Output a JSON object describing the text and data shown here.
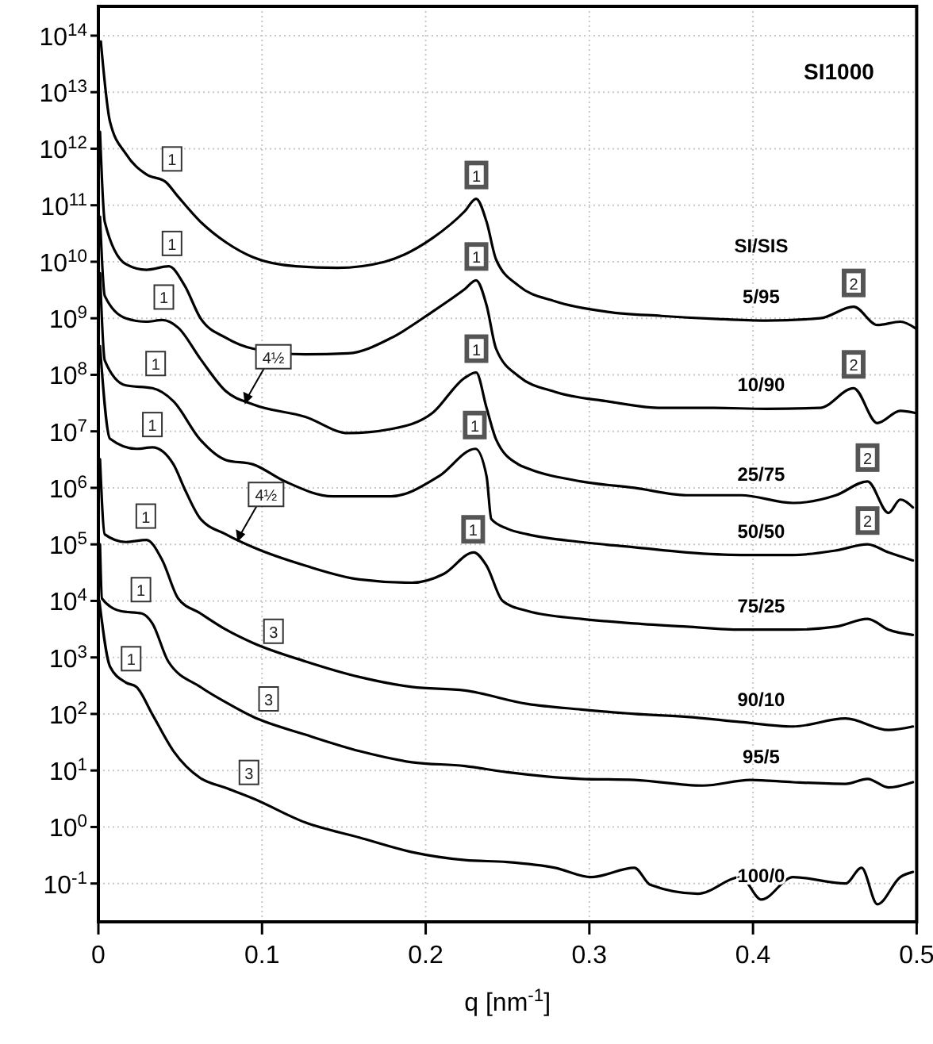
{
  "chart_data": {
    "type": "line",
    "title": "SI1000",
    "legend_title": "SI/SIS",
    "xlabel": "q [nm$^{-1}$]",
    "log": "y",
    "grid": true,
    "xlim": [
      0,
      0.5
    ],
    "ylim": [
      0.021,
      330000000000000.0
    ],
    "xticks": [
      0,
      0.1,
      0.2,
      0.3,
      0.4,
      0.5
    ],
    "yticks": [
      {
        "value": 0.1,
        "label": "10$^{-1}$"
      },
      {
        "value": 1,
        "label": "10$^{0}$"
      },
      {
        "value": 10,
        "label": "10$^{1}$"
      },
      {
        "value": 100,
        "label": "10$^{2}$"
      },
      {
        "value": 1000,
        "label": "10$^{3}$"
      },
      {
        "value": 10000.0,
        "label": "10$^{4}$"
      },
      {
        "value": 100000.0,
        "label": "10$^{5}$"
      },
      {
        "value": 1000000.0,
        "label": "10$^{6}$"
      },
      {
        "value": 10000000.0,
        "label": "10$^{7}$"
      },
      {
        "value": 100000000.0,
        "label": "10$^{8}$"
      },
      {
        "value": 1000000000.0,
        "label": "10$^{9}$"
      },
      {
        "value": 10000000000.0,
        "label": "10$^{10}$"
      },
      {
        "value": 100000000000.0,
        "label": "10$^{11}$"
      },
      {
        "value": 1000000000000.0,
        "label": "10$^{12}$"
      },
      {
        "value": 10000000000000.0,
        "label": "10$^{13}$"
      },
      {
        "value": 100000000000000.0,
        "label": "10$^{14}$"
      }
    ],
    "series": [
      {
        "name": "5/95",
        "color": "#000000",
        "x": [
          0.0015,
          0.0071,
          0.0168,
          0.0294,
          0.041,
          0.048,
          0.0624,
          0.078,
          0.0945,
          0.1207,
          0.146,
          0.175,
          0.204,
          0.224,
          0.2308,
          0.2372,
          0.243,
          0.2566,
          0.279,
          0.311,
          0.344,
          0.376,
          0.408,
          0.441,
          0.4615,
          0.476,
          0.49,
          0.4995
        ],
        "values": [
          79000000000000.0,
          3000000000000.0,
          810000000000.0,
          350000000000.0,
          260000000000.0,
          150000000000.0,
          51000000000.0,
          22000000000.0,
          12000000000.0,
          8300000000.0,
          7800000000.0,
          10000000000.0,
          26000000000.0,
          79000000000.0,
          130000000000.0,
          51000000000.0,
          11000000000.0,
          3800000000.0,
          2000000000.0,
          1300000000.0,
          1100000000.0,
          980000000.0,
          910000000.0,
          1000000000.0,
          1600000000.0,
          760000000.0,
          870000000.0,
          660000000.0
        ]
      },
      {
        "name": "10/90",
        "color": "#000000",
        "x": [
          0.001,
          0.0039,
          0.0168,
          0.0294,
          0.043,
          0.0527,
          0.0624,
          0.078,
          0.0945,
          0.1265,
          0.1527,
          0.179,
          0.204,
          0.224,
          0.2308,
          0.2372,
          0.243,
          0.2566,
          0.279,
          0.311,
          0.344,
          0.376,
          0.408,
          0.441,
          0.4615,
          0.476,
          0.49,
          0.4995
        ],
        "values": [
          2000000000000.0,
          51000000000.0,
          9100000000.0,
          7200000000.0,
          8300000000.0,
          3800000000.0,
          1000000000.0,
          450000000.0,
          290000000.0,
          230000000.0,
          240000000.0,
          450000000.0,
          1300000000.0,
          3300000000.0,
          4700000000.0,
          1700000000.0,
          290000000.0,
          95000000.0,
          50000000.0,
          34000000.0,
          26000000.0,
          26000000.0,
          25000000.0,
          26000000.0,
          58000000.0,
          14000000.0,
          23000000.0,
          21000000.0
        ]
      },
      {
        "name": "25/75",
        "color": "#000000",
        "x": [
          0.001,
          0.0039,
          0.0168,
          0.0294,
          0.0391,
          0.0488,
          0.0624,
          0.078,
          0.0945,
          0.1265,
          0.1527,
          0.179,
          0.204,
          0.224,
          0.2308,
          0.2372,
          0.243,
          0.2566,
          0.2624,
          0.295,
          0.3275,
          0.3595,
          0.3925,
          0.4245,
          0.4507,
          0.47,
          0.4828,
          0.49,
          0.4977
        ],
        "values": [
          63000000000.0,
          2500000000.0,
          1000000000.0,
          870000000.0,
          930000000.0,
          680000000.0,
          190000000.0,
          51000000.0,
          30000000.0,
          18000000.0,
          9300000.0,
          11000000.0,
          21000000.0,
          89000000.0,
          110000000.0,
          26000000.0,
          7200000.0,
          2600000.0,
          2200000.0,
          1300000.0,
          1000000.0,
          740000.0,
          740000.0,
          540000.0,
          740000.0,
          1300000.0,
          360000.0,
          620000.0,
          450000.0
        ]
      },
      {
        "name": "50/50",
        "color": "#000000",
        "x": [
          0.001,
          0.0039,
          0.0168,
          0.033,
          0.0459,
          0.0621,
          0.078,
          0.0945,
          0.114,
          0.1431,
          0.179,
          0.208,
          0.2304,
          0.2372,
          0.2401,
          0.2498,
          0.2624,
          0.295,
          0.3275,
          0.3595,
          0.3925,
          0.4245,
          0.4507,
          0.47,
          0.4828,
          0.4977
        ],
        "values": [
          6300000000.0,
          180000000.0,
          65000000.0,
          58000000.0,
          34000000.0,
          7200000.0,
          3100000.0,
          2600000.0,
          1300000.0,
          710000.0,
          710000.0,
          1600000.0,
          4900000.0,
          1600000.0,
          280000.0,
          190000.0,
          150000.0,
          110000.0,
          89000.0,
          72000.0,
          65000.0,
          65000.0,
          78000.0,
          100000.0,
          72000.0,
          52000.0
        ]
      },
      {
        "name": "75/25",
        "color": "#000000",
        "x": [
          0.001,
          0.0071,
          0.0233,
          0.033,
          0.0459,
          0.0524,
          0.0621,
          0.078,
          0.0945,
          0.1265,
          0.1595,
          0.1916,
          0.211,
          0.2294,
          0.2372,
          0.247,
          0.2624,
          0.295,
          0.3275,
          0.3595,
          0.3925,
          0.4245,
          0.4507,
          0.47,
          0.4828,
          0.4977
        ],
        "values": [
          320000000.0,
          7400000.0,
          4900000.0,
          5200000.0,
          2600000.0,
          1000000.0,
          290000.0,
          150000.0,
          89000.0,
          42000.0,
          24000.0,
          21000.0,
          30000.0,
          72000.0,
          42000.0,
          10000.0,
          6600.0,
          4800.0,
          4000.0,
          3500.0,
          3100.0,
          3100.0,
          3500.0,
          4800.0,
          3100.0,
          2500.0
        ]
      },
      {
        "name": "90/10",
        "color": "#000000",
        "x": [
          0.001,
          0.0039,
          0.0168,
          0.0294,
          0.0391,
          0.0488,
          0.0624,
          0.078,
          0.0945,
          0.1265,
          0.1595,
          0.1916,
          0.224,
          0.2624,
          0.295,
          0.3275,
          0.3595,
          0.3925,
          0.4245,
          0.4565,
          0.4828,
          0.4977
        ],
        "values": [
          3200000.0,
          150000.0,
          110000.0,
          120000.0,
          52000.0,
          11000.0,
          6000.0,
          3100.0,
          1800.0,
          850,
          450,
          300,
          260,
          150,
          120,
          100,
          89,
          72,
          60,
          83,
          52,
          60
        ]
      },
      {
        "name": "95/5",
        "color": "#000000",
        "x": [
          0.001,
          0.0022,
          0.0136,
          0.0265,
          0.033,
          0.0427,
          0.0624,
          0.078,
          0.0945,
          0.1265,
          0.1595,
          0.1916,
          0.224,
          0.2498,
          0.295,
          0.3275,
          0.3693,
          0.3984,
          0.4245,
          0.4565,
          0.47,
          0.4828,
          0.4977
        ],
        "values": [
          100000.0,
          11000.0,
          6600.0,
          6000.0,
          4000.0,
          850,
          300,
          160,
          89,
          43,
          22,
          14,
          12,
          9.3,
          7.1,
          6.8,
          5.4,
          6.8,
          6.2,
          5.8,
          7.1,
          5,
          6.2
        ]
      },
      {
        "name": "100/0",
        "color": "#000000",
        "x": [
          0.0006,
          0.0071,
          0.0168,
          0.0233,
          0.033,
          0.0459,
          0.0621,
          0.078,
          0.0945,
          0.1265,
          0.1595,
          0.1916,
          0.224,
          0.2498,
          0.279,
          0.3012,
          0.3275,
          0.3372,
          0.3663,
          0.3925,
          0.4051,
          0.4245,
          0.4565,
          0.4663,
          0.476,
          0.49,
          0.4977
        ],
        "values": [
          10000.0,
          690,
          360,
          300,
          98,
          22,
          7.4,
          4.9,
          3.2,
          1.2,
          0.65,
          0.36,
          0.26,
          0.24,
          0.19,
          0.13,
          0.19,
          0.095,
          0.066,
          0.13,
          0.052,
          0.13,
          0.1,
          0.19,
          0.043,
          0.13,
          0.16
        ]
      }
    ],
    "annotations": [
      {
        "text": "1",
        "x": 0.045,
        "y": 250000000000.0
      },
      {
        "text": "1",
        "x": 0.045,
        "y": 8000000000.0
      },
      {
        "text": "1",
        "x": 0.04,
        "y": 900000000.0
      },
      {
        "text": "1",
        "x": 0.035,
        "y": 60000000.0
      },
      {
        "text": "1",
        "x": 0.033,
        "y": 5000000.0
      },
      {
        "text": "1",
        "x": 0.029,
        "y": 120000.0
      },
      {
        "text": "1",
        "x": 0.026,
        "y": 6000.0
      },
      {
        "text": "1",
        "x": 0.02,
        "y": 360
      },
      {
        "text": "1",
        "x": 0.231,
        "y": 130000000000.0
      },
      {
        "text": "1",
        "x": 0.231,
        "y": 4700000000.0
      },
      {
        "text": "1",
        "x": 0.231,
        "y": 110000000.0
      },
      {
        "text": "1",
        "x": 0.23,
        "y": 4900000.0
      },
      {
        "text": "1",
        "x": 0.229,
        "y": 70000.0
      },
      {
        "text": "2",
        "x": 0.4615,
        "y": 1600000000.0
      },
      {
        "text": "2",
        "x": 0.4615,
        "y": 58000000.0
      },
      {
        "text": "2",
        "x": 0.47,
        "y": 1300000.0
      },
      {
        "text": "2",
        "x": 0.47,
        "y": 100000.0
      },
      {
        "text": "3",
        "x": 0.107,
        "y": 1100
      },
      {
        "text": "3",
        "x": 0.104,
        "y": 70
      },
      {
        "text": "3",
        "x": 0.092,
        "y": 3.5
      },
      {
        "text": "4½",
        "x": 0.0895,
        "y": 30000000.0
      },
      {
        "text": "4½",
        "x": 0.085,
        "y": 110000.0
      }
    ]
  }
}
